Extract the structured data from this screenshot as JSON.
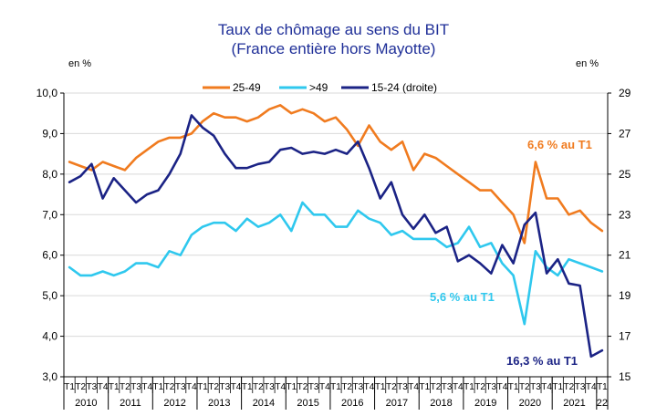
{
  "chart_data": {
    "type": "line",
    "title": "Taux de chômage au sens du BIT",
    "subtitle": "(France entière hors Mayotte)",
    "y_left_unit": "en %",
    "y_right_unit": "en %",
    "y_left": {
      "min": 3,
      "max": 10,
      "ticks": [
        "3,0",
        "4,0",
        "5,0",
        "6,0",
        "7,0",
        "8,0",
        "9,0",
        "10,0"
      ]
    },
    "y_right": {
      "min": 15,
      "max": 29,
      "ticks": [
        "15",
        "17",
        "19",
        "21",
        "23",
        "25",
        "27",
        "29"
      ]
    },
    "quarter_labels": [
      "T1",
      "T2",
      "T3",
      "T4"
    ],
    "years": [
      "2010",
      "2011",
      "2012",
      "2013",
      "2014",
      "2015",
      "2016",
      "2017",
      "2018",
      "2019",
      "2020",
      "2021",
      "22"
    ],
    "series": [
      {
        "name": "25-49",
        "color": "#f07b1f",
        "axis": "left",
        "values": [
          8.3,
          8.2,
          8.1,
          8.3,
          8.2,
          8.1,
          8.4,
          8.6,
          8.8,
          8.9,
          8.9,
          9.0,
          9.3,
          9.5,
          9.4,
          9.4,
          9.3,
          9.4,
          9.6,
          9.7,
          9.5,
          9.6,
          9.5,
          9.3,
          9.4,
          9.1,
          8.7,
          9.2,
          8.8,
          8.6,
          8.8,
          8.1,
          8.5,
          8.4,
          8.2,
          8.0,
          7.8,
          7.6,
          7.6,
          7.3,
          7.0,
          6.3,
          8.3,
          7.4,
          7.4,
          7.0,
          7.1,
          6.8,
          6.6
        ]
      },
      {
        "name": ">49",
        "color": "#2fc8ee",
        "axis": "left",
        "values": [
          5.7,
          5.5,
          5.5,
          5.6,
          5.5,
          5.6,
          5.8,
          5.8,
          5.7,
          6.1,
          6.0,
          6.5,
          6.7,
          6.8,
          6.8,
          6.6,
          6.9,
          6.7,
          6.8,
          7.0,
          6.6,
          7.3,
          7.0,
          7.0,
          6.7,
          6.7,
          7.1,
          6.9,
          6.8,
          6.5,
          6.6,
          6.4,
          6.4,
          6.4,
          6.2,
          6.3,
          6.7,
          6.2,
          6.3,
          5.8,
          5.5,
          4.3,
          6.1,
          5.7,
          5.5,
          5.9,
          5.8,
          5.7,
          5.6
        ]
      },
      {
        "name": "15-24 (droite)",
        "color": "#1b2385",
        "axis": "right",
        "values": [
          24.6,
          24.9,
          25.5,
          23.8,
          24.8,
          24.2,
          23.6,
          24.0,
          24.2,
          25.0,
          26.0,
          27.9,
          27.3,
          26.9,
          26.0,
          25.3,
          25.3,
          25.5,
          25.6,
          26.2,
          26.3,
          26.0,
          26.1,
          26.0,
          26.2,
          26.0,
          26.6,
          25.3,
          23.8,
          24.6,
          23.0,
          22.3,
          23.0,
          22.1,
          22.4,
          20.7,
          21.0,
          20.6,
          20.1,
          21.5,
          20.6,
          22.5,
          23.1,
          20.1,
          20.8,
          19.6,
          19.5,
          16.0,
          16.3
        ]
      }
    ],
    "legend_position": "top-center",
    "grid": true,
    "annotations": [
      {
        "text": "6,6 % au T1",
        "color": "#f07b1f"
      },
      {
        "text": "5,6 % au T1",
        "color": "#2fc8ee"
      },
      {
        "text": "16,3 % au T1",
        "color": "#1b2385"
      }
    ]
  }
}
